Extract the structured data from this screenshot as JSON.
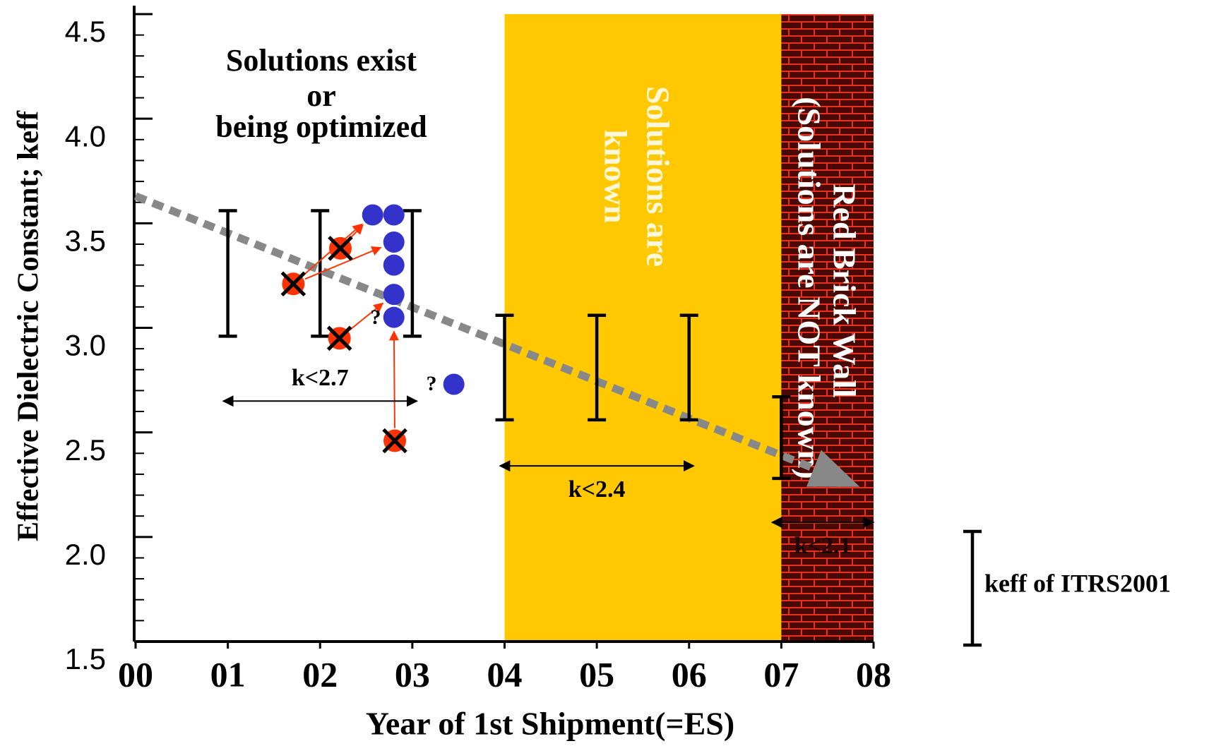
{
  "chart_data": {
    "type": "scatter",
    "x_label": "Year of 1st Shipment(=ES)",
    "y_label": "Effective Dielectric Constant; keff",
    "xlim": [
      0,
      8
    ],
    "ylim": [
      1.5,
      4.5
    ],
    "xticks": [
      {
        "value": 0,
        "label": "00"
      },
      {
        "value": 1,
        "label": "01"
      },
      {
        "value": 2,
        "label": "02"
      },
      {
        "value": 3,
        "label": "03"
      },
      {
        "value": 4,
        "label": "04"
      },
      {
        "value": 5,
        "label": "05"
      },
      {
        "value": 6,
        "label": "06"
      },
      {
        "value": 7,
        "label": "07"
      },
      {
        "value": 8,
        "label": "08"
      }
    ],
    "yticks": [
      1.5,
      {
        "value": 2,
        "label": "2.0"
      },
      2.5,
      {
        "value": 3,
        "label": "3.0"
      },
      3.5,
      {
        "value": 4,
        "label": "4.0"
      },
      4.5
    ],
    "regions": [
      {
        "label": [
          "Solutions are",
          "known"
        ],
        "x": [
          4,
          7
        ],
        "color": "#ffc800"
      },
      {
        "label": [
          "Red Brick Wall",
          "(Solutions are NOT known)"
        ],
        "x": [
          7,
          8
        ],
        "color": "#e8321c"
      }
    ],
    "series": [
      {
        "name": "keff of ITRS2001",
        "kind": "range",
        "color": "#000000",
        "x": [
          1,
          2,
          3,
          4,
          5,
          6,
          7
        ],
        "low": [
          2.96,
          2.96,
          2.96,
          2.56,
          2.56,
          2.56,
          2.28
        ],
        "high": [
          3.56,
          3.56,
          3.56,
          3.06,
          3.06,
          3.06,
          2.67
        ]
      },
      {
        "kind": "cross",
        "color": "#ff3300",
        "x": [
          1.71,
          2.22,
          2.21,
          2.81
        ],
        "values": [
          3.21,
          3.38,
          2.95,
          2.46
        ]
      },
      {
        "kind": "dot",
        "color": "#3333cc",
        "x": [
          2.57,
          2.8,
          2.8,
          2.8,
          2.8,
          2.8,
          3.45
        ],
        "values": [
          3.54,
          3.54,
          3.41,
          3.3,
          3.16,
          3.05,
          2.73
        ]
      }
    ],
    "trend": {
      "x": [
        0,
        7.85
      ],
      "values": [
        3.63,
        2.24
      ],
      "color": "#888888"
    },
    "ranges": [
      {
        "label": "k<2.7",
        "x": [
          0.95,
          3.05
        ],
        "y": 2.65
      },
      {
        "label": "k<2.4",
        "x": [
          3.95,
          6.05
        ],
        "y": 2.34
      },
      {
        "label": "k<2.1",
        "x": [
          6.9,
          8
        ],
        "y": 2.07
      }
    ],
    "annotations": [
      "Solutions exist",
      "or",
      "being optimized"
    ],
    "question_marks": [
      "?",
      "?"
    ]
  }
}
